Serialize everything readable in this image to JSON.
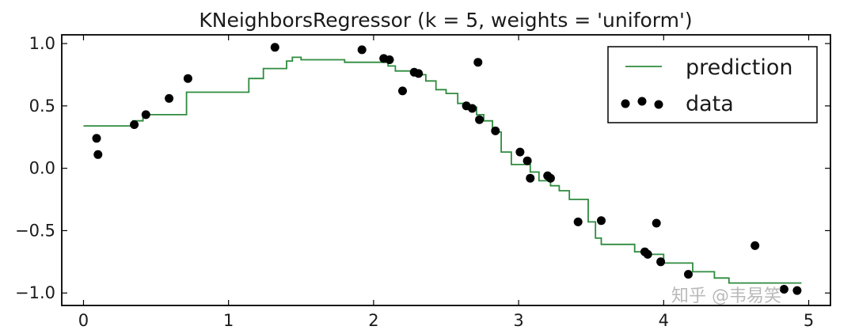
{
  "chart_data": {
    "type": "scatter",
    "title": "KNeighborsRegressor (k = 5, weights = 'uniform')",
    "xlabel": "",
    "ylabel": "",
    "xlim": [
      -0.15,
      5.15
    ],
    "ylim": [
      -1.1,
      1.07
    ],
    "xticks": [
      0,
      1,
      2,
      3,
      4,
      5
    ],
    "xtick_labels": [
      "0",
      "1",
      "2",
      "3",
      "4",
      "5"
    ],
    "yticks": [
      1.0,
      0.5,
      0.0,
      -0.5,
      -1.0
    ],
    "ytick_labels": [
      "1.0",
      "0.5",
      "0.0",
      "−0.5",
      "−1.0"
    ],
    "grid": false,
    "legend": {
      "position": "top-right",
      "entries": [
        {
          "label": "prediction",
          "kind": "line",
          "color": "#2e8b3e"
        },
        {
          "label": "data",
          "kind": "points",
          "color": "#000000"
        }
      ]
    },
    "series": [
      {
        "name": "prediction",
        "kind": "step",
        "color": "#2e8b3e",
        "points": [
          [
            0.0,
            0.34
          ],
          [
            0.34,
            0.34
          ],
          [
            0.34,
            0.38
          ],
          [
            0.41,
            0.38
          ],
          [
            0.41,
            0.43
          ],
          [
            0.71,
            0.43
          ],
          [
            0.71,
            0.61
          ],
          [
            1.14,
            0.61
          ],
          [
            1.14,
            0.72
          ],
          [
            1.24,
            0.72
          ],
          [
            1.24,
            0.8
          ],
          [
            1.4,
            0.8
          ],
          [
            1.4,
            0.86
          ],
          [
            1.44,
            0.86
          ],
          [
            1.44,
            0.89
          ],
          [
            1.5,
            0.89
          ],
          [
            1.5,
            0.87
          ],
          [
            1.8,
            0.87
          ],
          [
            1.8,
            0.85
          ],
          [
            2.1,
            0.85
          ],
          [
            2.1,
            0.82
          ],
          [
            2.15,
            0.82
          ],
          [
            2.15,
            0.78
          ],
          [
            2.28,
            0.78
          ],
          [
            2.28,
            0.75
          ],
          [
            2.36,
            0.75
          ],
          [
            2.36,
            0.7
          ],
          [
            2.43,
            0.7
          ],
          [
            2.43,
            0.63
          ],
          [
            2.5,
            0.63
          ],
          [
            2.5,
            0.6
          ],
          [
            2.58,
            0.6
          ],
          [
            2.58,
            0.52
          ],
          [
            2.65,
            0.52
          ],
          [
            2.65,
            0.49
          ],
          [
            2.71,
            0.49
          ],
          [
            2.71,
            0.43
          ],
          [
            2.76,
            0.43
          ],
          [
            2.76,
            0.38
          ],
          [
            2.82,
            0.38
          ],
          [
            2.82,
            0.29
          ],
          [
            2.88,
            0.29
          ],
          [
            2.88,
            0.13
          ],
          [
            2.95,
            0.13
          ],
          [
            2.95,
            0.03
          ],
          [
            3.08,
            0.03
          ],
          [
            3.08,
            -0.03
          ],
          [
            3.14,
            -0.03
          ],
          [
            3.14,
            -0.1
          ],
          [
            3.22,
            -0.1
          ],
          [
            3.22,
            -0.14
          ],
          [
            3.28,
            -0.14
          ],
          [
            3.28,
            -0.18
          ],
          [
            3.35,
            -0.18
          ],
          [
            3.35,
            -0.25
          ],
          [
            3.48,
            -0.25
          ],
          [
            3.48,
            -0.43
          ],
          [
            3.53,
            -0.43
          ],
          [
            3.53,
            -0.56
          ],
          [
            3.57,
            -0.56
          ],
          [
            3.57,
            -0.61
          ],
          [
            3.8,
            -0.61
          ],
          [
            3.8,
            -0.67
          ],
          [
            3.9,
            -0.67
          ],
          [
            3.9,
            -0.69
          ],
          [
            4.0,
            -0.69
          ],
          [
            4.0,
            -0.76
          ],
          [
            4.2,
            -0.76
          ],
          [
            4.2,
            -0.83
          ],
          [
            4.35,
            -0.83
          ],
          [
            4.35,
            -0.88
          ],
          [
            4.45,
            -0.88
          ],
          [
            4.45,
            -0.92
          ],
          [
            4.8,
            -0.92
          ],
          [
            4.95,
            -0.92
          ]
        ]
      },
      {
        "name": "data",
        "kind": "scatter",
        "color": "#000000",
        "x": [
          0.09,
          0.1,
          0.35,
          0.43,
          0.59,
          0.72,
          1.32,
          1.92,
          2.07,
          2.11,
          2.2,
          2.28,
          2.31,
          2.64,
          2.68,
          2.72,
          2.73,
          2.84,
          3.01,
          3.06,
          3.08,
          3.2,
          3.22,
          3.41,
          3.57,
          3.87,
          3.89,
          3.95,
          3.98,
          4.17,
          4.63,
          4.83,
          4.92
        ],
        "y": [
          0.24,
          0.11,
          0.35,
          0.43,
          0.56,
          0.72,
          0.97,
          0.95,
          0.88,
          0.87,
          0.62,
          0.77,
          0.76,
          0.5,
          0.48,
          0.85,
          0.39,
          0.3,
          0.13,
          0.06,
          -0.08,
          -0.06,
          -0.08,
          -0.43,
          -0.42,
          -0.67,
          -0.69,
          -0.44,
          -0.75,
          -0.85,
          -0.62,
          -0.97,
          -0.98
        ]
      }
    ]
  },
  "watermark": "知乎 @韦易笑"
}
